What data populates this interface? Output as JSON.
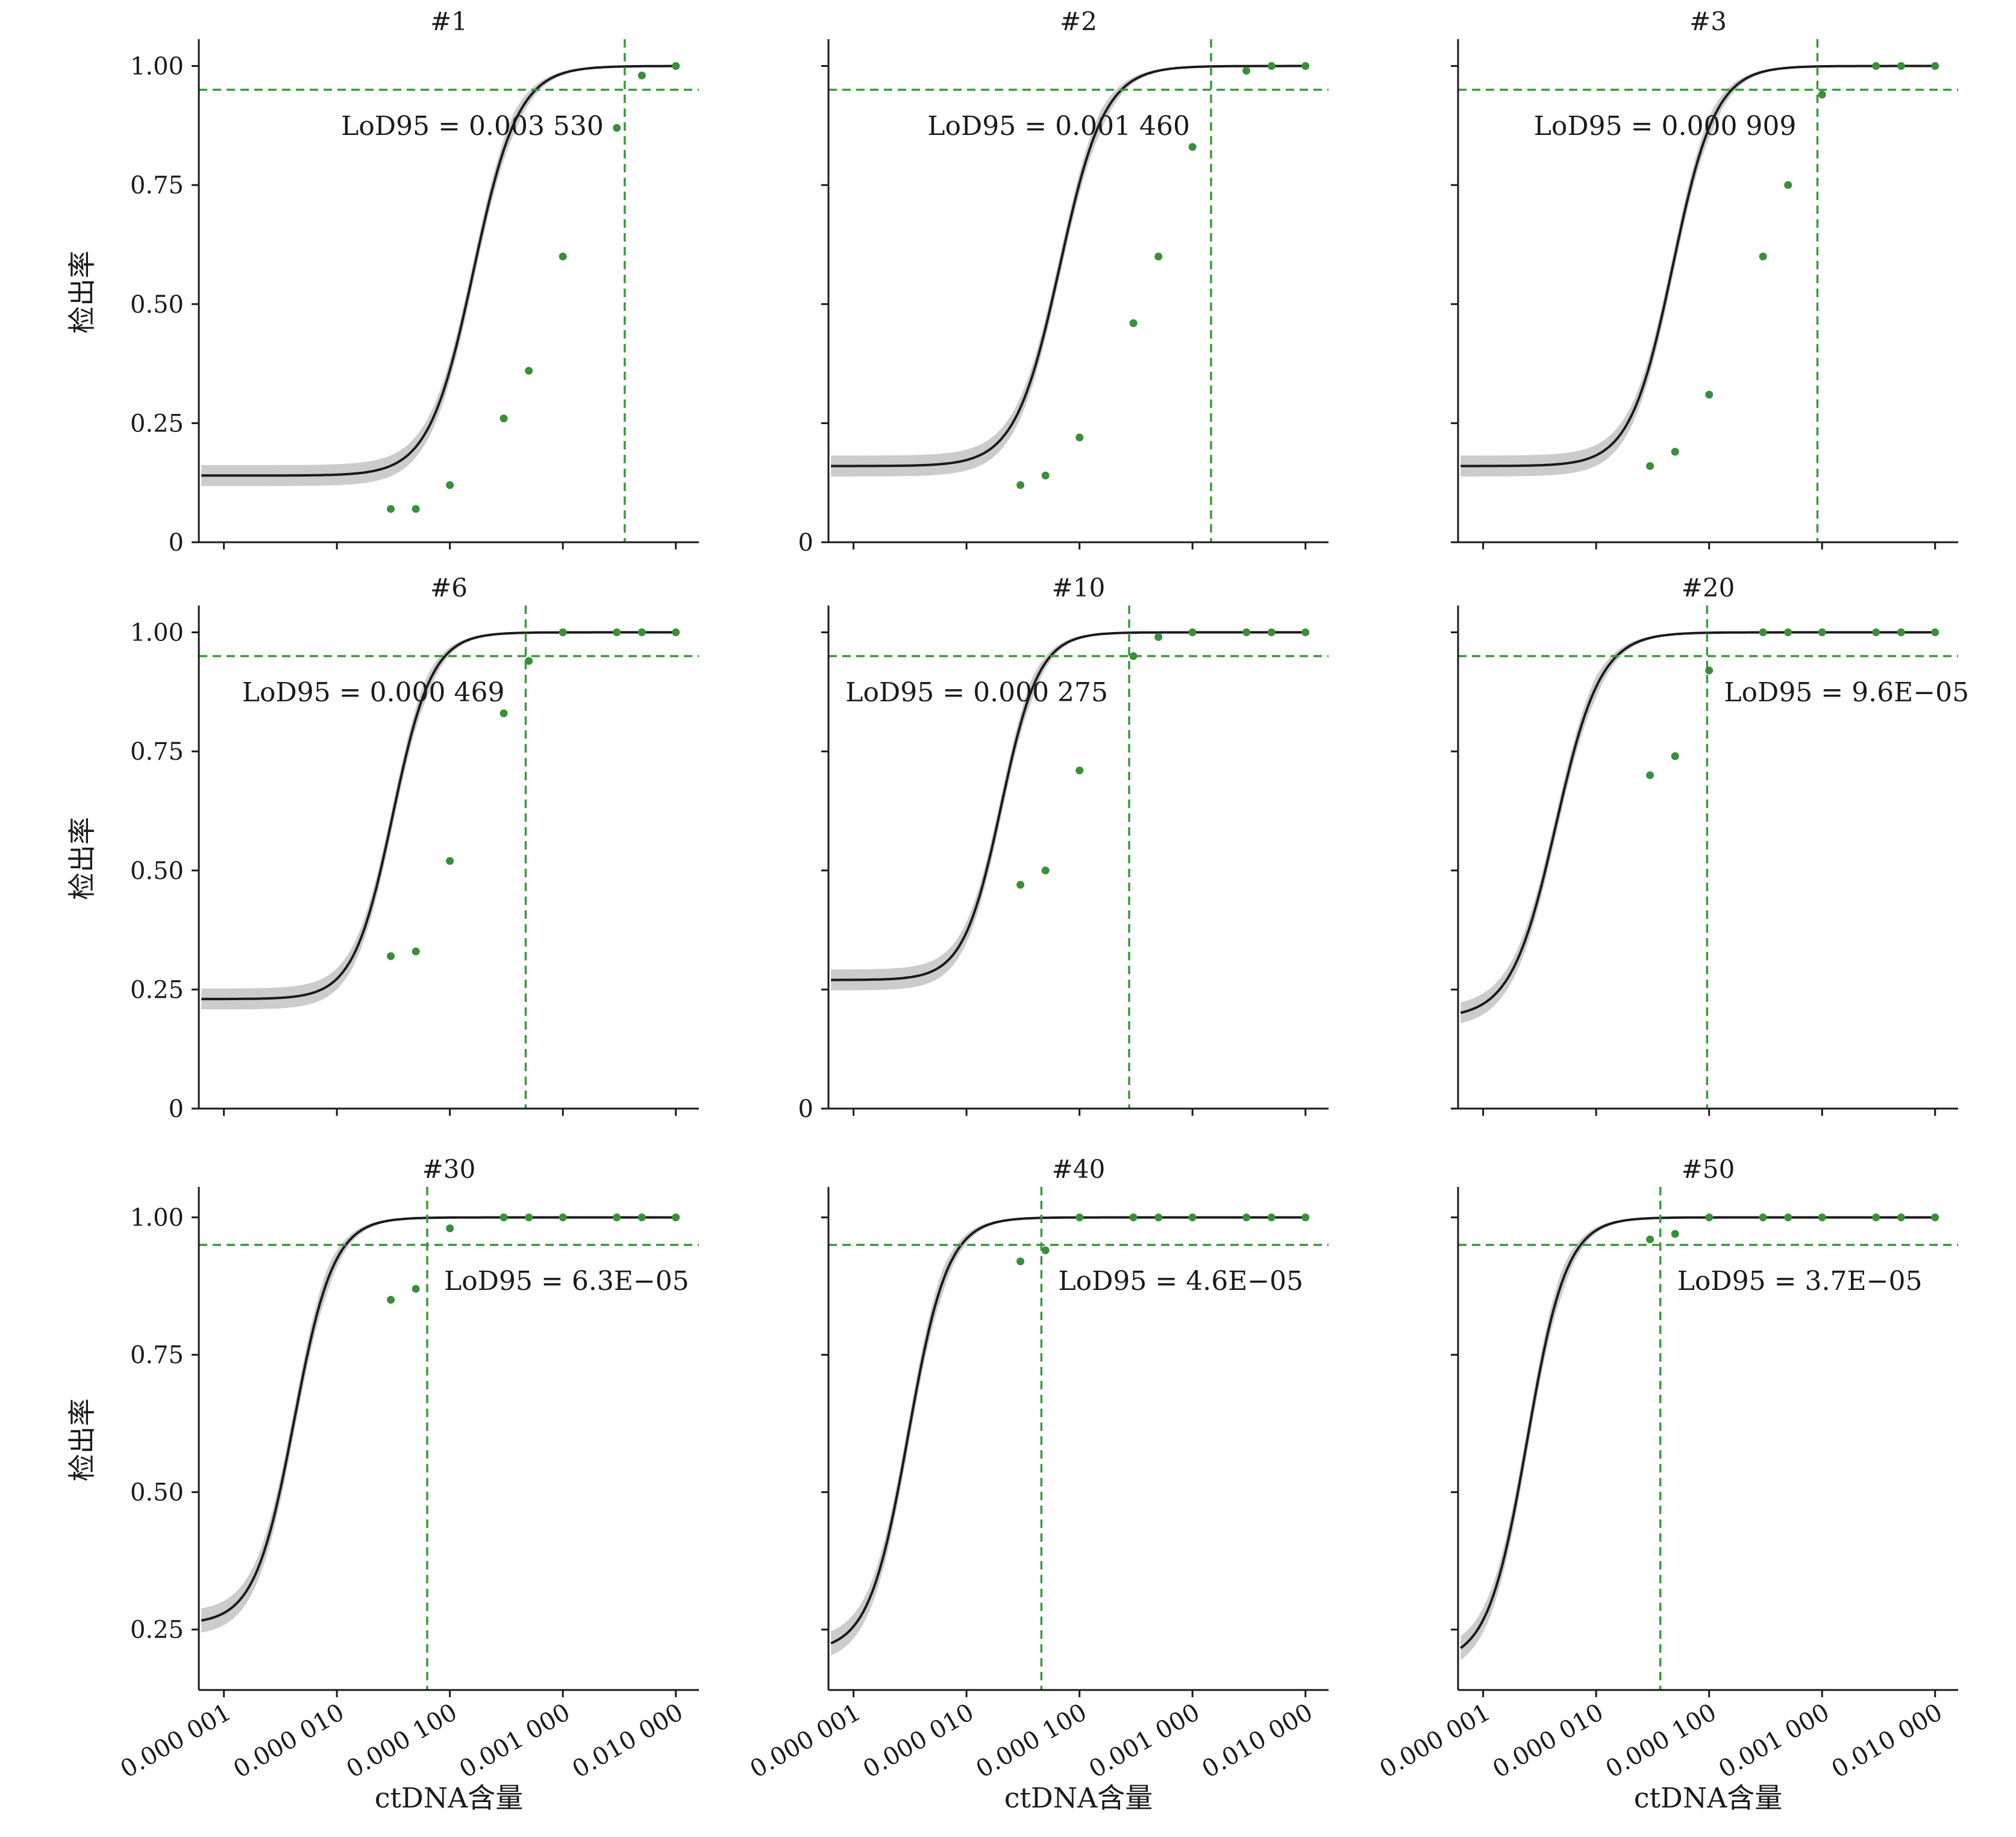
{
  "chart_data": {
    "type": "line",
    "x_scale": "log",
    "xlim": [
      6e-07,
      0.016
    ],
    "ylim": [
      0,
      1.05
    ],
    "x_ticks": [
      1e-06,
      1e-05,
      0.0001,
      0.001,
      0.01
    ],
    "x_tick_labels": [
      "0.000 001",
      "0.000 010",
      "0.000 100",
      "0.001 000",
      "0.010 000"
    ],
    "y_ticks": [
      0,
      0.25,
      0.5,
      0.75,
      1.0
    ],
    "y_tick_labels": [
      "0",
      "0.25",
      "0.50",
      "0.75",
      "1.00"
    ],
    "xlabel": "ctDNA含量",
    "ylabel": "检出率",
    "threshold": 0.95,
    "colors": {
      "points": "#3a8f3a",
      "guides": "#3a9a3a",
      "curve": "#1a1a1a",
      "band": "#cccccc"
    },
    "panels": [
      {
        "title": "#1",
        "lod95": 0.00353,
        "annotation": "LoD95 = 0.003 530",
        "annotation_side": "left",
        "y_min": 0,
        "show_y_labels": true,
        "y_labels_shown": [
          "0",
          "0.25",
          "0.50",
          "0.75",
          "1.00"
        ],
        "show_x_labels": false,
        "floor": 0.14,
        "steepness": 2.2,
        "points": [
          {
            "x": 3e-05,
            "y": 0.07
          },
          {
            "x": 5e-05,
            "y": 0.07
          },
          {
            "x": 0.0001,
            "y": 0.12
          },
          {
            "x": 0.0003,
            "y": 0.26
          },
          {
            "x": 0.0005,
            "y": 0.36
          },
          {
            "x": 0.001,
            "y": 0.6
          },
          {
            "x": 0.003,
            "y": 0.87
          },
          {
            "x": 0.005,
            "y": 0.98
          },
          {
            "x": 0.01,
            "y": 1.0
          }
        ]
      },
      {
        "title": "#2",
        "lod95": 0.00146,
        "annotation": "LoD95 = 0.001 460",
        "annotation_side": "left",
        "y_min": 0,
        "show_y_labels": true,
        "y_labels_shown": [
          "0"
        ],
        "show_x_labels": false,
        "floor": 0.16,
        "steepness": 2.2,
        "points": [
          {
            "x": 3e-05,
            "y": 0.12
          },
          {
            "x": 5e-05,
            "y": 0.14
          },
          {
            "x": 0.0001,
            "y": 0.22
          },
          {
            "x": 0.0003,
            "y": 0.46
          },
          {
            "x": 0.0005,
            "y": 0.6
          },
          {
            "x": 0.001,
            "y": 0.83
          },
          {
            "x": 0.003,
            "y": 0.99
          },
          {
            "x": 0.005,
            "y": 1.0
          },
          {
            "x": 0.01,
            "y": 1.0
          }
        ]
      },
      {
        "title": "#3",
        "lod95": 0.000909,
        "annotation": "LoD95 = 0.000 909",
        "annotation_side": "left",
        "y_min": 0,
        "show_y_labels": false,
        "y_labels_shown": [],
        "show_x_labels": false,
        "floor": 0.16,
        "steepness": 2.3,
        "points": [
          {
            "x": 3e-05,
            "y": 0.16
          },
          {
            "x": 5e-05,
            "y": 0.19
          },
          {
            "x": 0.0001,
            "y": 0.31
          },
          {
            "x": 0.0003,
            "y": 0.6
          },
          {
            "x": 0.0005,
            "y": 0.75
          },
          {
            "x": 0.001,
            "y": 0.94
          },
          {
            "x": 0.003,
            "y": 1.0
          },
          {
            "x": 0.005,
            "y": 1.0
          },
          {
            "x": 0.01,
            "y": 1.0
          }
        ]
      },
      {
        "title": "#6",
        "lod95": 0.000469,
        "annotation": "LoD95 = 0.000 469",
        "annotation_side": "left",
        "y_min": 0,
        "show_y_labels": true,
        "y_labels_shown": [
          "0",
          "0.25",
          "0.50",
          "0.75",
          "1.00"
        ],
        "show_x_labels": false,
        "floor": 0.23,
        "steepness": 2.5,
        "points": [
          {
            "x": 3e-05,
            "y": 0.32
          },
          {
            "x": 5e-05,
            "y": 0.33
          },
          {
            "x": 0.0001,
            "y": 0.52
          },
          {
            "x": 0.0003,
            "y": 0.83
          },
          {
            "x": 0.0005,
            "y": 0.94
          },
          {
            "x": 0.001,
            "y": 1.0
          },
          {
            "x": 0.003,
            "y": 1.0
          },
          {
            "x": 0.005,
            "y": 1.0
          },
          {
            "x": 0.01,
            "y": 1.0
          }
        ]
      },
      {
        "title": "#10",
        "lod95": 0.000275,
        "annotation": "LoD95 = 0.000 275",
        "annotation_side": "left",
        "y_min": 0,
        "show_y_labels": true,
        "y_labels_shown": [
          "0"
        ],
        "show_x_labels": false,
        "floor": 0.27,
        "steepness": 2.6,
        "points": [
          {
            "x": 3e-05,
            "y": 0.47
          },
          {
            "x": 5e-05,
            "y": 0.5
          },
          {
            "x": 0.0001,
            "y": 0.71
          },
          {
            "x": 0.0003,
            "y": 0.95
          },
          {
            "x": 0.0005,
            "y": 0.99
          },
          {
            "x": 0.001,
            "y": 1.0
          },
          {
            "x": 0.003,
            "y": 1.0
          },
          {
            "x": 0.005,
            "y": 1.0
          },
          {
            "x": 0.01,
            "y": 1.0
          }
        ]
      },
      {
        "title": "#20",
        "lod95": 9.6e-05,
        "annotation": "LoD95 = 9.6E−05",
        "annotation_side": "right",
        "y_min": 0,
        "show_y_labels": false,
        "y_labels_shown": [],
        "show_x_labels": false,
        "floor": 0.19,
        "steepness": 2.2,
        "points": [
          {
            "x": 3e-05,
            "y": 0.7
          },
          {
            "x": 5e-05,
            "y": 0.74
          },
          {
            "x": 0.0001,
            "y": 0.92
          },
          {
            "x": 0.0003,
            "y": 1.0
          },
          {
            "x": 0.0005,
            "y": 1.0
          },
          {
            "x": 0.001,
            "y": 1.0
          },
          {
            "x": 0.003,
            "y": 1.0
          },
          {
            "x": 0.005,
            "y": 1.0
          },
          {
            "x": 0.01,
            "y": 1.0
          }
        ]
      },
      {
        "title": "#30",
        "lod95": 6.3e-05,
        "annotation": "LoD95 = 6.3E−05",
        "annotation_side": "right",
        "y_min": 0.14,
        "show_y_labels": true,
        "y_labels_shown": [
          "0.25",
          "0.50",
          "0.75",
          "1.00"
        ],
        "show_x_labels": true,
        "floor": 0.26,
        "steepness": 2.5,
        "points": [
          {
            "x": 3e-05,
            "y": 0.85
          },
          {
            "x": 5e-05,
            "y": 0.87
          },
          {
            "x": 0.0001,
            "y": 0.98
          },
          {
            "x": 0.0003,
            "y": 1.0
          },
          {
            "x": 0.0005,
            "y": 1.0
          },
          {
            "x": 0.001,
            "y": 1.0
          },
          {
            "x": 0.003,
            "y": 1.0
          },
          {
            "x": 0.005,
            "y": 1.0
          },
          {
            "x": 0.01,
            "y": 1.0
          }
        ]
      },
      {
        "title": "#40",
        "lod95": 4.6e-05,
        "annotation": "LoD95 = 4.6E−05",
        "annotation_side": "right",
        "y_min": 0.14,
        "show_y_labels": false,
        "y_labels_shown": [],
        "show_x_labels": true,
        "floor": 0.21,
        "steepness": 2.5,
        "points": [
          {
            "x": 3e-05,
            "y": 0.92
          },
          {
            "x": 5e-05,
            "y": 0.94
          },
          {
            "x": 0.0001,
            "y": 1.0
          },
          {
            "x": 0.0003,
            "y": 1.0
          },
          {
            "x": 0.0005,
            "y": 1.0
          },
          {
            "x": 0.001,
            "y": 1.0
          },
          {
            "x": 0.003,
            "y": 1.0
          },
          {
            "x": 0.005,
            "y": 1.0
          },
          {
            "x": 0.01,
            "y": 1.0
          }
        ]
      },
      {
        "title": "#50",
        "lod95": 3.7e-05,
        "annotation": "LoD95 = 3.7E−05",
        "annotation_side": "right",
        "y_min": 0.14,
        "show_y_labels": false,
        "y_labels_shown": [],
        "show_x_labels": true,
        "floor": 0.19,
        "steepness": 2.5,
        "points": [
          {
            "x": 3e-05,
            "y": 0.96
          },
          {
            "x": 5e-05,
            "y": 0.97
          },
          {
            "x": 0.0001,
            "y": 1.0
          },
          {
            "x": 0.0003,
            "y": 1.0
          },
          {
            "x": 0.0005,
            "y": 1.0
          },
          {
            "x": 0.001,
            "y": 1.0
          },
          {
            "x": 0.003,
            "y": 1.0
          },
          {
            "x": 0.005,
            "y": 1.0
          },
          {
            "x": 0.01,
            "y": 1.0
          }
        ]
      }
    ]
  }
}
